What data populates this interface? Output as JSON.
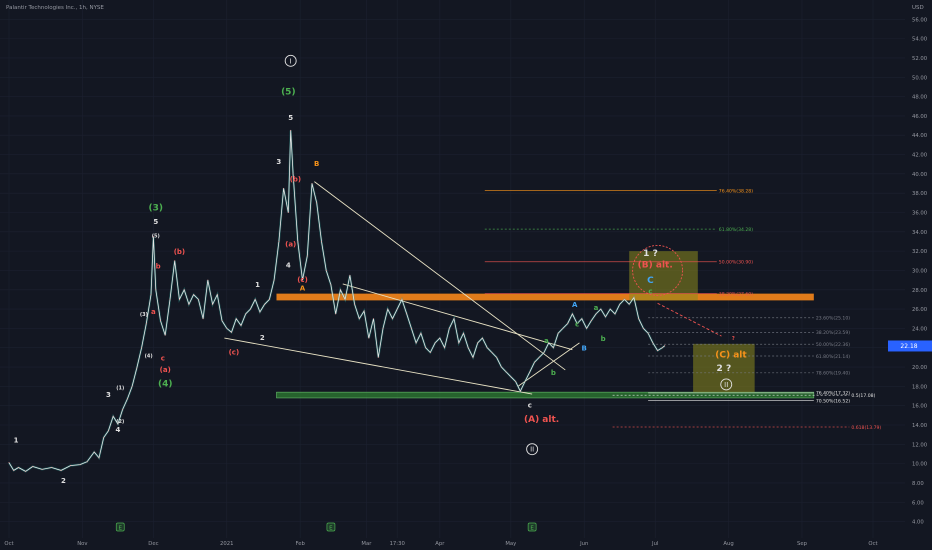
{
  "header": {
    "title": "Palantir Technologies Inc., 1h, NYSE",
    "currency": "USD"
  },
  "last_price": {
    "value": 22.18,
    "label": "22.18"
  },
  "colors": {
    "background": "#131722",
    "grid": "#1c2130",
    "axis_text": "#9598a1",
    "price_line": "#e8e8e8",
    "green": "#4caf50",
    "red": "#ef5350",
    "orange": "#f7931a",
    "blue": "#42a5f5",
    "white": "#e0e0e0",
    "olive": "#8c8b1e",
    "dark_green_zone": "#2e7d32",
    "last_price_bg": "#2962ff"
  },
  "chart_data": {
    "type": "line",
    "title": "Palantir Technologies Inc., 1h, NYSE",
    "ylim": [
      2.3,
      58
    ],
    "y_ticks": [
      4,
      6,
      8,
      10,
      12,
      14,
      16,
      18,
      20,
      22,
      24,
      26,
      28,
      30,
      32,
      34,
      36,
      38,
      40,
      42,
      44,
      46,
      48,
      50,
      52,
      54,
      56
    ],
    "x_ticks": [
      {
        "label": "Oct",
        "day": 0
      },
      {
        "label": "Nov",
        "day": 31
      },
      {
        "label": "Dec",
        "day": 61
      },
      {
        "label": "2021",
        "day": 92
      },
      {
        "label": "Feb",
        "day": 123
      },
      {
        "label": "Mar",
        "day": 151
      },
      {
        "label": "17:30",
        "day": 164
      },
      {
        "label": "Apr",
        "day": 182
      },
      {
        "label": "May",
        "day": 212
      },
      {
        "label": "Jun",
        "day": 243
      },
      {
        "label": "Jul",
        "day": 273
      },
      {
        "label": "Aug",
        "day": 304
      },
      {
        "label": "Sep",
        "day": 335
      },
      {
        "label": "Oct",
        "day": 365
      }
    ],
    "x_range_days": [
      0,
      370
    ],
    "series": [
      {
        "points": [
          [
            0,
            10.1
          ],
          [
            2,
            9.3
          ],
          [
            4,
            9.6
          ],
          [
            7,
            9.2
          ],
          [
            10,
            9.7
          ],
          [
            14,
            9.4
          ],
          [
            18,
            9.6
          ],
          [
            22,
            9.3
          ],
          [
            26,
            9.8
          ],
          [
            30,
            9.9
          ],
          [
            33,
            10.2
          ],
          [
            36,
            11.2
          ],
          [
            38,
            10.6
          ],
          [
            40,
            12.7
          ],
          [
            42,
            13.4
          ],
          [
            44,
            14.9
          ],
          [
            46,
            14.1
          ],
          [
            48,
            15.6
          ],
          [
            50,
            16.7
          ],
          [
            52,
            18.0
          ],
          [
            54,
            19.9
          ],
          [
            56,
            22.0
          ],
          [
            58,
            24.5
          ],
          [
            60,
            27.5
          ],
          [
            61,
            33.5
          ],
          [
            62,
            28.0
          ],
          [
            64,
            24.8
          ],
          [
            66,
            23.3
          ],
          [
            68,
            27.0
          ],
          [
            70,
            31.0
          ],
          [
            72,
            27.0
          ],
          [
            74,
            28.0
          ],
          [
            76,
            26.5
          ],
          [
            78,
            27.5
          ],
          [
            80,
            27.0
          ],
          [
            82,
            25.0
          ],
          [
            84,
            29.0
          ],
          [
            86,
            26.5
          ],
          [
            88,
            27.5
          ],
          [
            90,
            24.8
          ],
          [
            92,
            24.0
          ],
          [
            94,
            23.6
          ],
          [
            96,
            25.0
          ],
          [
            98,
            24.3
          ],
          [
            100,
            25.5
          ],
          [
            102,
            26.0
          ],
          [
            104,
            27.0
          ],
          [
            106,
            25.7
          ],
          [
            108,
            26.5
          ],
          [
            110,
            27.0
          ],
          [
            112,
            29.0
          ],
          [
            114,
            33.0
          ],
          [
            116,
            38.5
          ],
          [
            118,
            36.0
          ],
          [
            119,
            44.5
          ],
          [
            120,
            40.0
          ],
          [
            122,
            33.0
          ],
          [
            124,
            29.0
          ],
          [
            126,
            31.5
          ],
          [
            128,
            39.0
          ],
          [
            130,
            37.0
          ],
          [
            132,
            33.0
          ],
          [
            134,
            30.0
          ],
          [
            136,
            28.5
          ],
          [
            138,
            25.5
          ],
          [
            140,
            28.0
          ],
          [
            142,
            27.0
          ],
          [
            144,
            29.5
          ],
          [
            146,
            26.5
          ],
          [
            148,
            25.0
          ],
          [
            150,
            25.8
          ],
          [
            152,
            23.0
          ],
          [
            154,
            25.0
          ],
          [
            156,
            21.0
          ],
          [
            158,
            24.0
          ],
          [
            160,
            26.0
          ],
          [
            162,
            25.0
          ],
          [
            164,
            26.0
          ],
          [
            166,
            27.0
          ],
          [
            168,
            25.5
          ],
          [
            170,
            24.0
          ],
          [
            172,
            22.5
          ],
          [
            174,
            23.5
          ],
          [
            176,
            22.0
          ],
          [
            178,
            21.5
          ],
          [
            180,
            22.5
          ],
          [
            182,
            23.0
          ],
          [
            184,
            22.0
          ],
          [
            186,
            24.0
          ],
          [
            188,
            25.0
          ],
          [
            190,
            22.5
          ],
          [
            192,
            23.5
          ],
          [
            194,
            22.0
          ],
          [
            196,
            21.0
          ],
          [
            198,
            22.5
          ],
          [
            200,
            23.0
          ],
          [
            202,
            22.0
          ],
          [
            204,
            21.5
          ],
          [
            206,
            21.0
          ],
          [
            208,
            20.0
          ],
          [
            210,
            19.5
          ],
          [
            212,
            19.0
          ],
          [
            214,
            18.5
          ],
          [
            216,
            17.5
          ],
          [
            218,
            18.5
          ],
          [
            220,
            19.5
          ],
          [
            222,
            20.5
          ],
          [
            224,
            21.0
          ],
          [
            226,
            21.5
          ],
          [
            228,
            22.5
          ],
          [
            230,
            22.0
          ],
          [
            232,
            23.5
          ],
          [
            234,
            24.0
          ],
          [
            236,
            24.5
          ],
          [
            238,
            25.5
          ],
          [
            240,
            24.5
          ],
          [
            242,
            25.0
          ],
          [
            244,
            24.0
          ],
          [
            246,
            24.8
          ],
          [
            248,
            25.5
          ],
          [
            250,
            26.0
          ],
          [
            252,
            25.2
          ],
          [
            254,
            26.0
          ],
          [
            256,
            25.5
          ],
          [
            258,
            26.5
          ],
          [
            260,
            27.0
          ],
          [
            262,
            26.5
          ],
          [
            264,
            27.2
          ],
          [
            266,
            25.0
          ],
          [
            268,
            24.0
          ],
          [
            270,
            23.5
          ],
          [
            272,
            22.5
          ],
          [
            274,
            21.7
          ],
          [
            276,
            22.0
          ],
          [
            277,
            22.2
          ]
        ]
      }
    ],
    "zones": [
      {
        "name": "orange-resistance",
        "y": [
          26.9,
          27.6
        ],
        "x": [
          113,
          340
        ]
      },
      {
        "name": "green-support",
        "y": [
          16.8,
          17.4
        ],
        "x": [
          113,
          340
        ]
      },
      {
        "name": "B-alt-box",
        "y": [
          26.9,
          32.0
        ],
        "x": [
          262,
          291
        ]
      },
      {
        "name": "C-alt-box",
        "y": [
          17.4,
          22.4
        ],
        "x": [
          289,
          315
        ]
      }
    ],
    "fib_levels": [
      {
        "label": "76.40%(38.28)",
        "y": 38.28,
        "x": [
          201,
          299
        ],
        "color": "orange"
      },
      {
        "label": "61.80%(34.28)",
        "y": 34.28,
        "x": [
          201,
          299
        ],
        "color": "green",
        "dashed": true
      },
      {
        "label": "50.00%(30.90)",
        "y": 30.9,
        "x": [
          201,
          299
        ],
        "color": "red"
      },
      {
        "label": "38.20%(27.60)",
        "y": 27.6,
        "x": [
          201,
          299
        ],
        "color": "red"
      },
      {
        "label": "23.60%(25.10)",
        "y": 25.1,
        "x": [
          270,
          340
        ],
        "color": "gray",
        "dashed": true
      },
      {
        "label": "38.20%(23.59)",
        "y": 23.59,
        "x": [
          270,
          340
        ],
        "color": "gray",
        "dashed": true
      },
      {
        "label": "50.00%(22.36)",
        "y": 22.36,
        "x": [
          270,
          340
        ],
        "color": "gray",
        "dashed": true
      },
      {
        "label": "61.80%(21.14)",
        "y": 21.14,
        "x": [
          270,
          340
        ],
        "color": "gray",
        "dashed": true
      },
      {
        "label": "78.60%(19.40)",
        "y": 19.4,
        "x": [
          270,
          340
        ],
        "color": "gray",
        "dashed": true
      },
      {
        "label": "76.40%(17.32)",
        "y": 17.32,
        "x": [
          270,
          340
        ],
        "color": "white"
      },
      {
        "label": "70.50%(16.52)",
        "y": 16.52,
        "x": [
          270,
          340
        ],
        "color": "white"
      },
      {
        "label": "0.5(17.08)",
        "y": 17.08,
        "x": [
          255,
          355
        ],
        "color": "white",
        "dashed": true
      },
      {
        "label": "0.618(13.79)",
        "y": 13.79,
        "x": [
          255,
          355
        ],
        "color": "red",
        "dashed": true
      }
    ],
    "trendlines": [
      {
        "from": [
          91,
          23.0
        ],
        "to": [
          221,
          17.2
        ],
        "color": "beige"
      },
      {
        "from": [
          129,
          39.2
        ],
        "to": [
          235,
          19.7
        ],
        "color": "beige"
      },
      {
        "from": [
          141,
          28.6
        ],
        "to": [
          238,
          21.8
        ],
        "color": "beige"
      },
      {
        "from": [
          215,
          18.0
        ],
        "to": [
          241,
          22.5
        ],
        "color": "beige"
      },
      {
        "from": [
          274,
          26.6
        ],
        "to": [
          301,
          23.2
        ],
        "color": "red",
        "dashed": true
      }
    ],
    "annotations": [
      {
        "text": "1",
        "day": 3,
        "y": 12.2,
        "color": "white"
      },
      {
        "text": "2",
        "day": 23,
        "y": 8.0,
        "color": "white"
      },
      {
        "text": "3",
        "day": 42,
        "y": 16.9,
        "color": "white"
      },
      {
        "text": "4",
        "day": 46,
        "y": 13.3,
        "color": "white"
      },
      {
        "text": "(1)",
        "day": 47,
        "y": 17.7,
        "color": "white",
        "small": true
      },
      {
        "text": "(2)",
        "day": 47,
        "y": 14.2,
        "color": "white",
        "small": true
      },
      {
        "text": "(3)",
        "day": 57,
        "y": 25.3,
        "color": "white",
        "small": true
      },
      {
        "text": "(4)",
        "day": 59,
        "y": 21.0,
        "color": "white",
        "small": true
      },
      {
        "text": "a",
        "day": 61,
        "y": 25.5,
        "color": "red"
      },
      {
        "text": "(5)",
        "day": 62,
        "y": 33.4,
        "color": "white",
        "small": true
      },
      {
        "text": "b",
        "day": 63,
        "y": 30.2,
        "color": "red"
      },
      {
        "text": "c",
        "day": 65,
        "y": 20.7,
        "color": "red"
      },
      {
        "text": "(a)",
        "day": 66,
        "y": 19.5,
        "color": "red"
      },
      {
        "text": "(3)",
        "day": 62,
        "y": 36.2,
        "color": "green",
        "big": true
      },
      {
        "text": "5",
        "day": 62,
        "y": 34.8,
        "color": "white"
      },
      {
        "text": "(4)",
        "day": 66,
        "y": 18.0,
        "color": "green",
        "big": true
      },
      {
        "text": "(b)",
        "day": 72,
        "y": 31.7,
        "color": "red"
      },
      {
        "text": "1",
        "day": 105,
        "y": 28.3,
        "color": "white"
      },
      {
        "text": "2",
        "day": 107,
        "y": 22.8,
        "color": "white"
      },
      {
        "text": "(c)",
        "day": 95,
        "y": 21.3,
        "color": "red"
      },
      {
        "text": "3",
        "day": 114,
        "y": 41.0,
        "color": "white"
      },
      {
        "text": "(b)",
        "day": 121,
        "y": 39.2,
        "color": "red"
      },
      {
        "text": "(5)",
        "day": 118,
        "y": 48.2,
        "color": "green",
        "big": true
      },
      {
        "text": "5",
        "day": 119,
        "y": 45.6,
        "color": "white"
      },
      {
        "text": "(a)",
        "day": 119,
        "y": 32.5,
        "color": "red"
      },
      {
        "text": "4",
        "day": 118,
        "y": 30.3,
        "color": "white"
      },
      {
        "text": "(c)",
        "day": 124,
        "y": 28.8,
        "color": "red"
      },
      {
        "text": "A",
        "day": 124,
        "y": 27.9,
        "color": "orange"
      },
      {
        "text": "B",
        "day": 130,
        "y": 40.8,
        "color": "orange"
      },
      {
        "text": "a",
        "day": 227,
        "y": 22.5,
        "color": "green"
      },
      {
        "text": "b",
        "day": 230,
        "y": 19.2,
        "color": "green"
      },
      {
        "text": "c",
        "day": 220,
        "y": 15.8,
        "color": "white"
      },
      {
        "text": "(A) alt.",
        "day": 225,
        "y": 14.3,
        "color": "red",
        "big": true
      },
      {
        "text": "A",
        "day": 239,
        "y": 26.2,
        "color": "blue"
      },
      {
        "text": "B",
        "day": 243,
        "y": 21.7,
        "color": "blue"
      },
      {
        "text": "c",
        "day": 240,
        "y": 24.2,
        "color": "green"
      },
      {
        "text": "a",
        "day": 248,
        "y": 25.9,
        "color": "green"
      },
      {
        "text": "b",
        "day": 251,
        "y": 22.7,
        "color": "green"
      },
      {
        "text": "1 ?",
        "day": 271,
        "y": 31.5,
        "color": "white",
        "big": true
      },
      {
        "text": "(B) alt.",
        "day": 273,
        "y": 30.3,
        "color": "red",
        "big": true
      },
      {
        "text": "C",
        "day": 271,
        "y": 28.7,
        "color": "blue",
        "big": true
      },
      {
        "text": "c",
        "day": 271,
        "y": 27.6,
        "color": "green"
      },
      {
        "text": "(C) alt",
        "day": 305,
        "y": 21.0,
        "color": "orange",
        "big": true
      },
      {
        "text": "2 ?",
        "day": 302,
        "y": 19.6,
        "color": "white",
        "big": true
      },
      {
        "text": "?",
        "day": 306,
        "y": 22.8,
        "color": "red",
        "small": true
      }
    ],
    "circled": [
      {
        "text": "I",
        "day": 119,
        "y": 51.7
      },
      {
        "text": "II",
        "day": 221,
        "y": 11.5
      },
      {
        "text": "II",
        "day": 303,
        "y": 18.2
      }
    ],
    "earnings_markers": [
      {
        "day": 47
      },
      {
        "day": 136
      },
      {
        "day": 221
      }
    ]
  }
}
